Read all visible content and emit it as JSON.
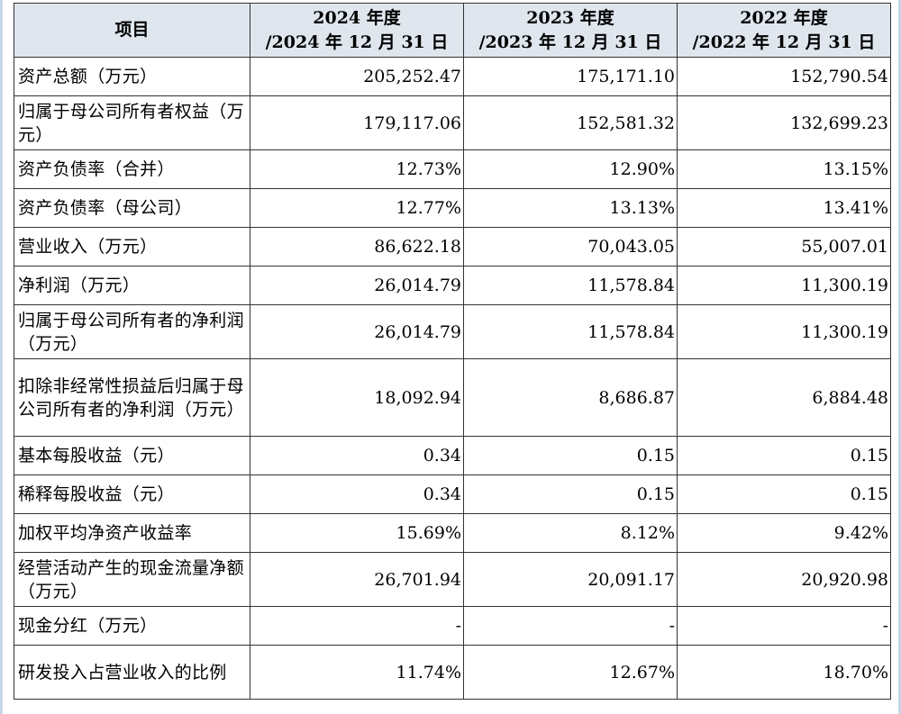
{
  "table": {
    "headers": [
      {
        "line1": "项目",
        "line2": ""
      },
      {
        "line1": "2024 年度",
        "line2": "/2024 年 12 月 31 日"
      },
      {
        "line1": "2023 年度",
        "line2": "/2023 年 12 月 31 日"
      },
      {
        "line1": "2022 年度",
        "line2": "/2022 年 12 月 31 日"
      }
    ],
    "rows": [
      {
        "label": "资产总额（万元）",
        "values": [
          "205,252.47",
          "175,171.10",
          "152,790.54"
        ]
      },
      {
        "label": "归属于母公司所有者权益（万元）",
        "values": [
          "179,117.06",
          "152,581.32",
          "132,699.23"
        ]
      },
      {
        "label": "资产负债率（合并）",
        "values": [
          "12.73%",
          "12.90%",
          "13.15%"
        ]
      },
      {
        "label": "资产负债率（母公司）",
        "values": [
          "12.77%",
          "13.13%",
          "13.41%"
        ]
      },
      {
        "label": "营业收入（万元）",
        "values": [
          "86,622.18",
          "70,043.05",
          "55,007.01"
        ]
      },
      {
        "label": "净利润（万元）",
        "values": [
          "26,014.79",
          "11,578.84",
          "11,300.19"
        ]
      },
      {
        "label": "归属于母公司所有者的净利润（万元）",
        "values": [
          "26,014.79",
          "11,578.84",
          "11,300.19"
        ]
      },
      {
        "label": "扣除非经常性损益后归属于母公司所有者的净利润（万元）",
        "values": [
          "18,092.94",
          "8,686.87",
          "6,884.48"
        ]
      },
      {
        "label": "基本每股收益（元）",
        "values": [
          "0.34",
          "0.15",
          "0.15"
        ]
      },
      {
        "label": "稀释每股收益（元）",
        "values": [
          "0.34",
          "0.15",
          "0.15"
        ]
      },
      {
        "label": "加权平均净资产收益率",
        "values": [
          "15.69%",
          "8.12%",
          "9.42%"
        ]
      },
      {
        "label": "经营活动产生的现金流量净额（万元）",
        "values": [
          "26,701.94",
          "20,091.17",
          "20,920.98"
        ]
      },
      {
        "label": "现金分红（万元）",
        "values": [
          "-",
          "-",
          "-"
        ]
      },
      {
        "label": "研发投入占营业收入的比例",
        "values": [
          "11.74%",
          "12.67%",
          "18.70%"
        ]
      }
    ]
  }
}
